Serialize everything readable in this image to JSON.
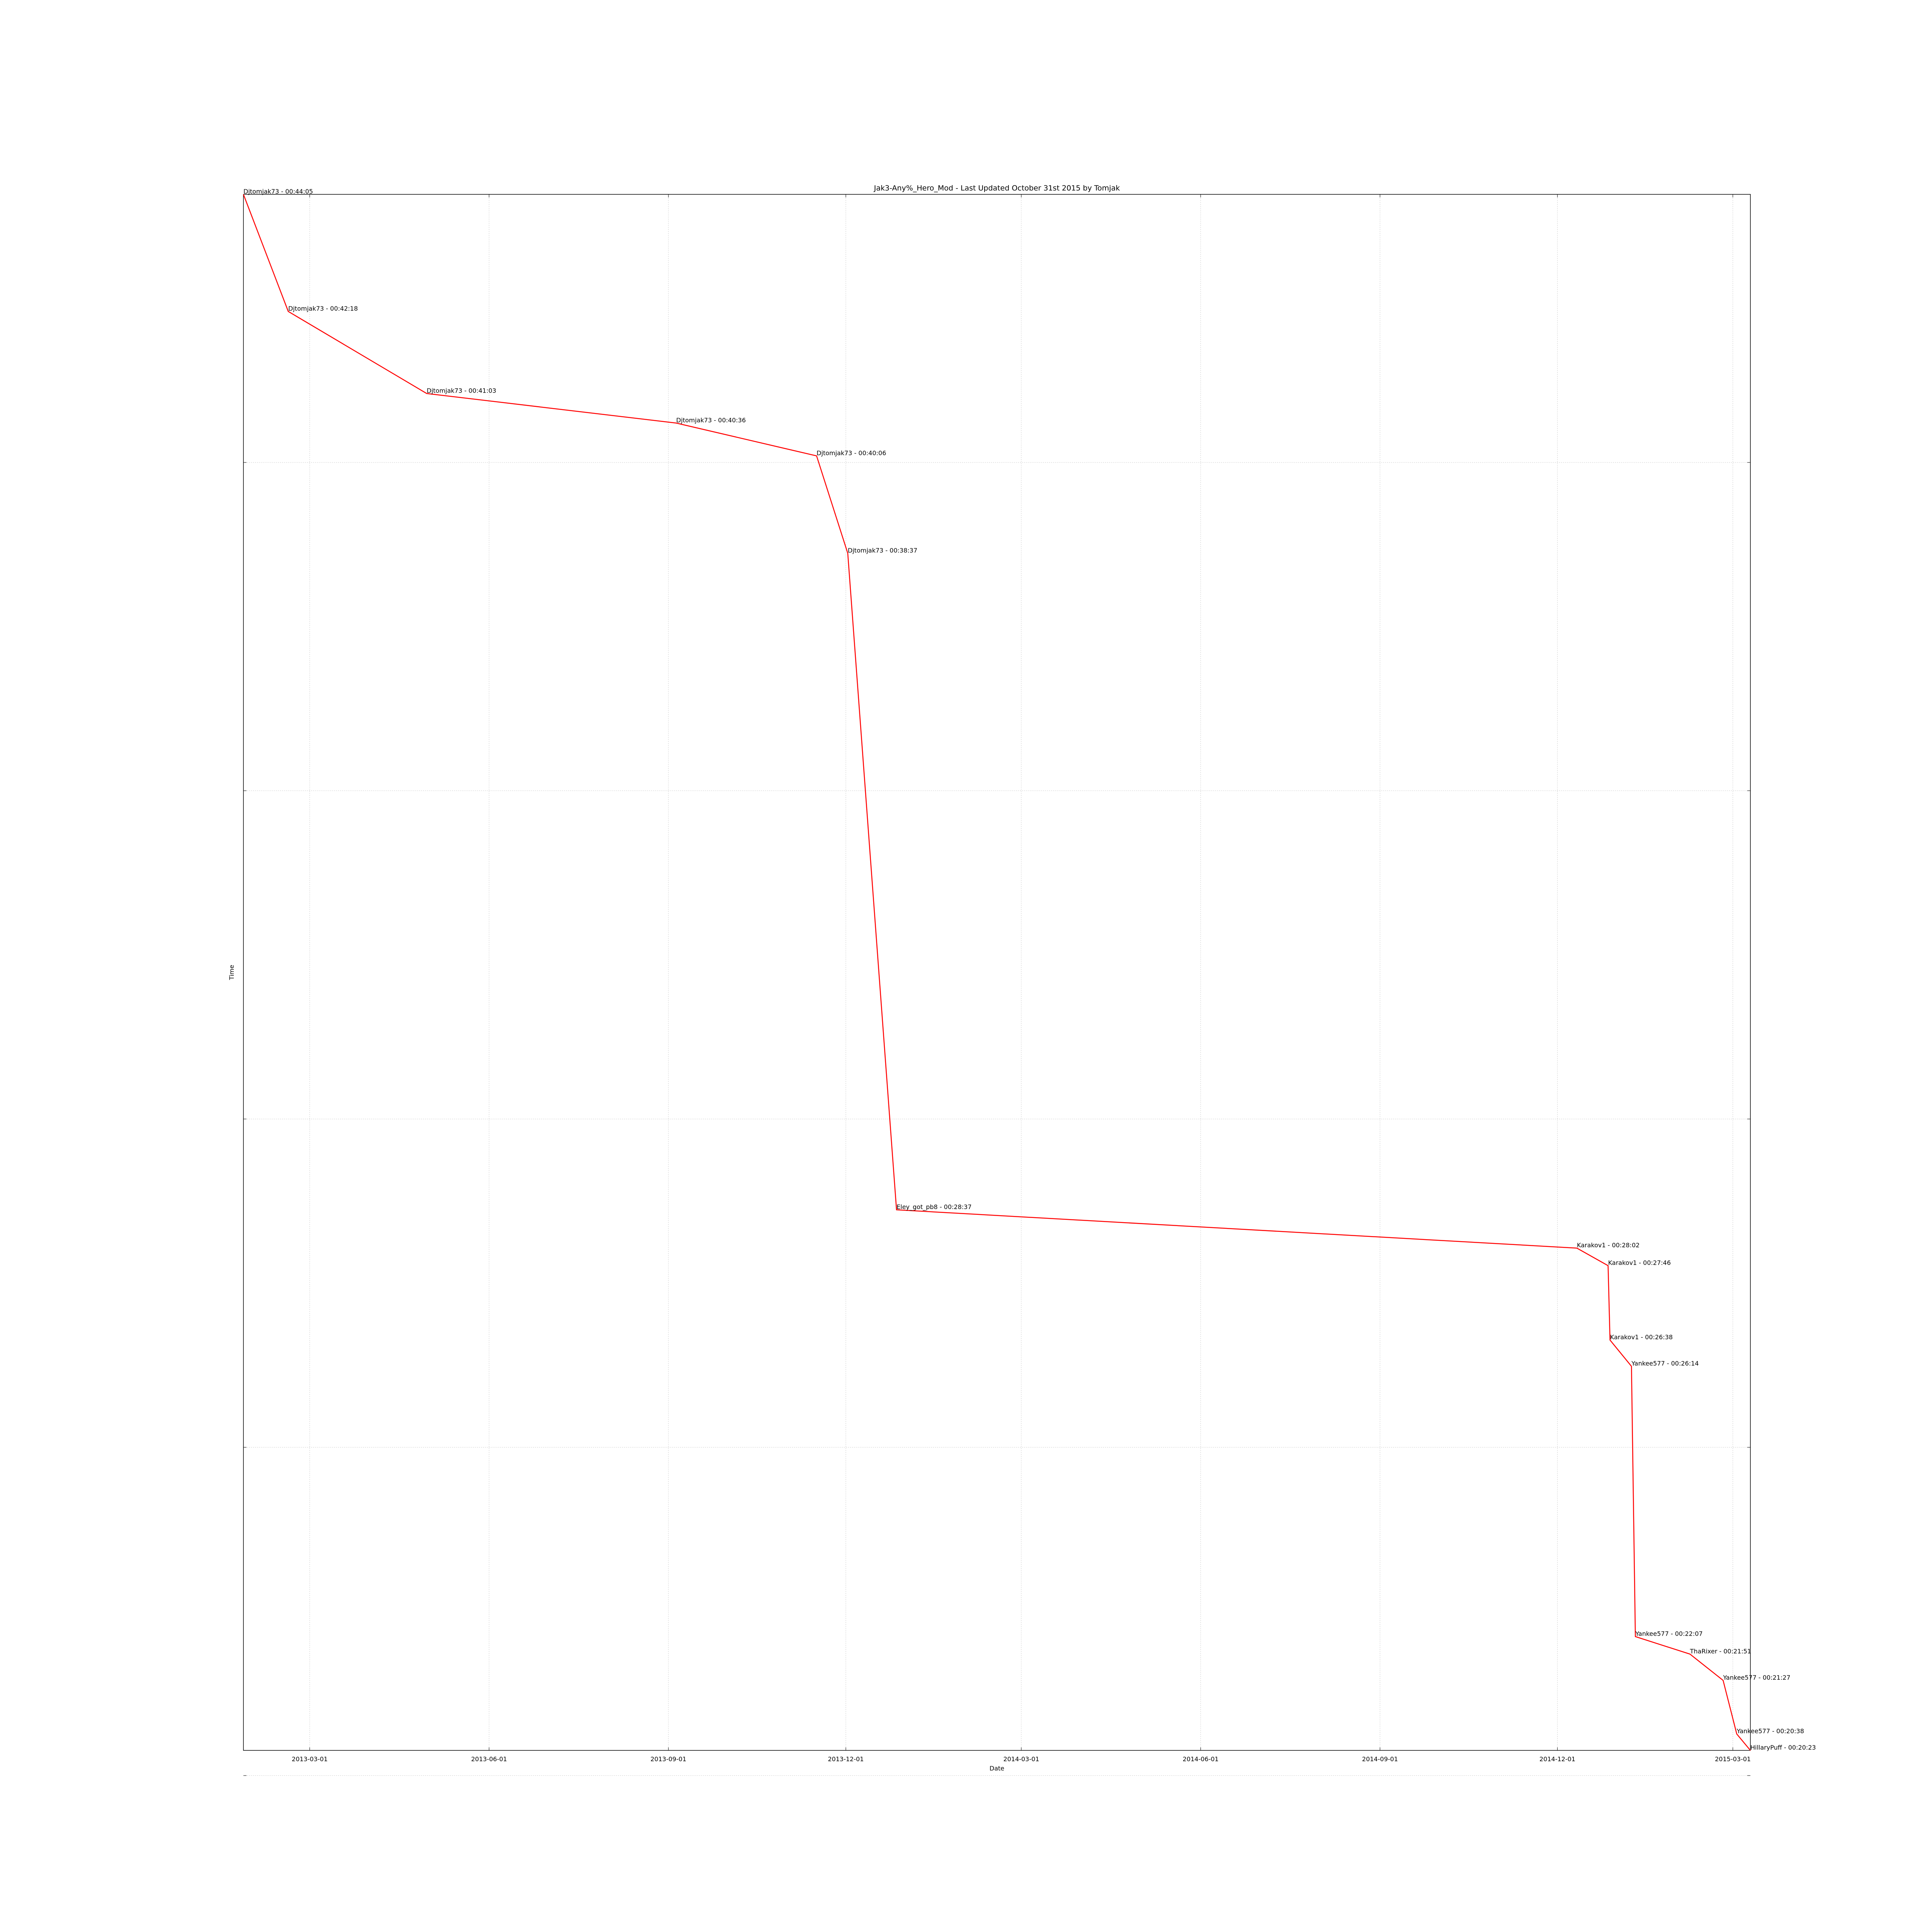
{
  "chart_data": {
    "type": "line",
    "title": "Jak3-Any%_Hero_Mod - Last Updated October 31st 2015 by Tomjak",
    "xlabel": "Date",
    "ylabel": "Time",
    "x_ticks": [
      "2013-03-01",
      "2013-06-01",
      "2013-09-01",
      "2013-12-01",
      "2014-03-01",
      "2014-06-01",
      "2014-09-01",
      "2014-12-01",
      "2015-03-01"
    ],
    "y_grid_values": [
      "00:40:00",
      "00:35:00",
      "00:30:00",
      "00:25:00",
      "00:20:00"
    ],
    "xlim": [
      "2013-01-26",
      "2015-03-10"
    ],
    "ylim": [
      "00:20:23",
      "00:44:05"
    ],
    "grid": true,
    "line_color": "#ff0000",
    "series": [
      {
        "points": [
          {
            "x": "2013-01-26",
            "y": "00:44:05",
            "label": "Djtomjak73 - 00:44:05"
          },
          {
            "x": "2013-02-18",
            "y": "00:42:18",
            "label": "Djtomjak73 - 00:42:18"
          },
          {
            "x": "2013-04-30",
            "y": "00:41:03",
            "label": "Djtomjak73 - 00:41:03"
          },
          {
            "x": "2013-09-05",
            "y": "00:40:36",
            "label": "Djtomjak73 - 00:40:36"
          },
          {
            "x": "2013-11-16",
            "y": "00:40:06",
            "label": "Djtomjak73 - 00:40:06"
          },
          {
            "x": "2013-12-02",
            "y": "00:38:37",
            "label": "Djtomjak73 - 00:38:37"
          },
          {
            "x": "2013-12-27",
            "y": "00:28:37",
            "label": "Eley_got_pb8 - 00:28:37"
          },
          {
            "x": "2014-12-11",
            "y": "00:28:02",
            "label": "Karakov1 - 00:28:02"
          },
          {
            "x": "2014-12-27",
            "y": "00:27:46",
            "label": "Karakov1 - 00:27:46"
          },
          {
            "x": "2014-12-28",
            "y": "00:26:38",
            "label": "Karakov1 - 00:26:38"
          },
          {
            "x": "2015-01-08",
            "y": "00:26:14",
            "label": "Yankee577 - 00:26:14"
          },
          {
            "x": "2015-01-10",
            "y": "00:22:07",
            "label": "Yankee577 - 00:22:07"
          },
          {
            "x": "2015-02-07",
            "y": "00:21:51",
            "label": "ThaRixer - 00:21:51"
          },
          {
            "x": "2015-02-24",
            "y": "00:21:27",
            "label": "Yankee577 - 00:21:27"
          },
          {
            "x": "2015-03-03",
            "y": "00:20:38",
            "label": "Yankee577 - 00:20:38"
          },
          {
            "x": "2015-03-10",
            "y": "00:20:23",
            "label": "HillaryPuff - 00:20:23"
          }
        ]
      }
    ]
  }
}
